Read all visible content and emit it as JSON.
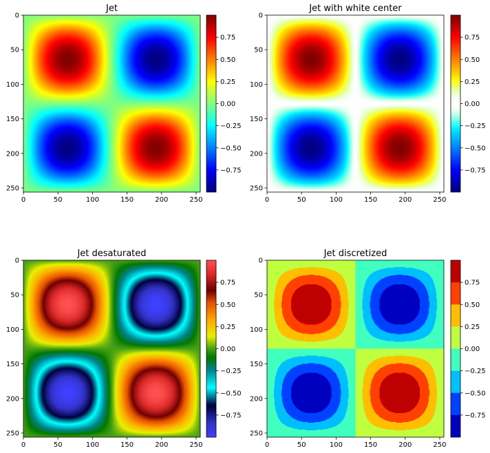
{
  "figure": {
    "background": "#ffffff"
  },
  "chart_data": [
    {
      "type": "heatmap",
      "title": "Jet",
      "colormap": "jet",
      "function": "sin(2*pi*x/256) * sin(2*pi*y/256)",
      "grid_size": [
        256,
        256
      ],
      "x_ticks": [
        "0",
        "50",
        "100",
        "150",
        "200",
        "250"
      ],
      "y_ticks": [
        "0",
        "50",
        "100",
        "150",
        "200",
        "250"
      ],
      "xlim": [
        0,
        256
      ],
      "ylim": [
        256,
        0
      ],
      "colorbar": {
        "range": [
          -1,
          1
        ],
        "ticks": [
          "0.75",
          "0.50",
          "0.25",
          "0.00",
          "−0.25",
          "−0.50",
          "−0.75"
        ]
      },
      "grid": false
    },
    {
      "type": "heatmap",
      "title": "Jet with white center",
      "colormap": "jet-white-center",
      "function": "sin(2*pi*x/256) * sin(2*pi*y/256)",
      "grid_size": [
        256,
        256
      ],
      "x_ticks": [
        "0",
        "50",
        "100",
        "150",
        "200",
        "250"
      ],
      "y_ticks": [
        "0",
        "50",
        "100",
        "150",
        "200",
        "250"
      ],
      "xlim": [
        0,
        256
      ],
      "ylim": [
        256,
        0
      ],
      "colorbar": {
        "range": [
          -1,
          1
        ],
        "ticks": [
          "0.75",
          "0.50",
          "0.25",
          "0.00",
          "−0.25",
          "−0.50",
          "−0.75"
        ]
      },
      "grid": false
    },
    {
      "type": "heatmap",
      "title": "Jet desaturated",
      "colormap": "jet-desaturated",
      "function": "sin(2*pi*x/256) * sin(2*pi*y/256)",
      "grid_size": [
        256,
        256
      ],
      "x_ticks": [
        "0",
        "50",
        "100",
        "150",
        "200",
        "250"
      ],
      "y_ticks": [
        "0",
        "50",
        "100",
        "150",
        "200",
        "250"
      ],
      "xlim": [
        0,
        256
      ],
      "ylim": [
        256,
        0
      ],
      "colorbar": {
        "range": [
          -1,
          1
        ],
        "ticks": [
          "0.75",
          "0.50",
          "0.25",
          "0.00",
          "−0.25",
          "−0.50",
          "−0.75"
        ]
      },
      "grid": false
    },
    {
      "type": "heatmap",
      "title": "Jet discretized",
      "colormap": "jet-discretized",
      "levels": 8,
      "function": "sin(2*pi*x/256) * sin(2*pi*y/256)",
      "grid_size": [
        256,
        256
      ],
      "x_ticks": [
        "0",
        "50",
        "100",
        "150",
        "200",
        "250"
      ],
      "y_ticks": [
        "0",
        "50",
        "100",
        "150",
        "200",
        "250"
      ],
      "xlim": [
        0,
        256
      ],
      "ylim": [
        256,
        0
      ],
      "colorbar": {
        "range": [
          -1,
          1
        ],
        "ticks": [
          "0.75",
          "0.50",
          "0.25",
          "0.00",
          "−0.25",
          "−0.50",
          "−0.75"
        ]
      },
      "grid": false
    }
  ]
}
